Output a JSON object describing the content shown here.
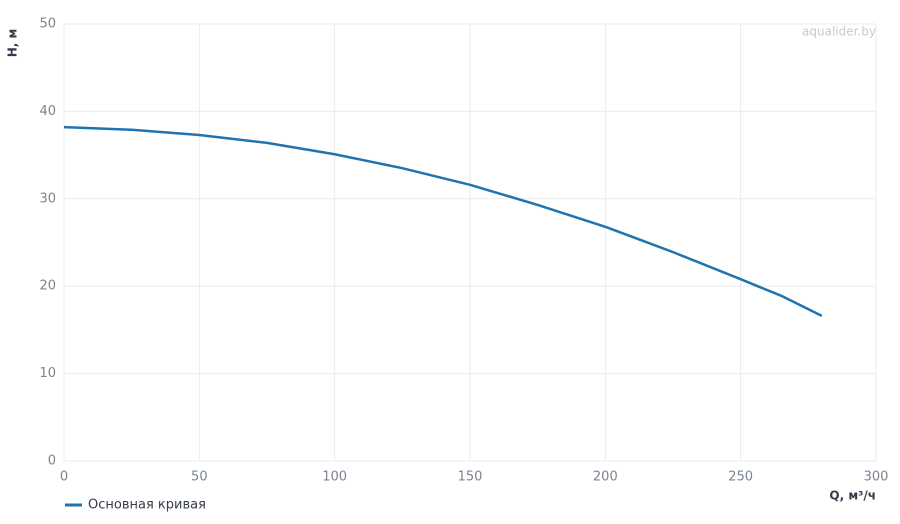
{
  "chart_data": {
    "type": "line",
    "watermark": "aqualider.by",
    "x_label": "Q, м³/ч",
    "y_label": "H, м",
    "x": [
      0,
      25,
      50,
      75,
      100,
      125,
      150,
      175,
      200,
      225,
      250,
      265,
      280
    ],
    "series": [
      {
        "name": "Основная кривая",
        "color": "#2173b0",
        "values": [
          38.2,
          37.9,
          37.3,
          36.4,
          35.1,
          33.5,
          31.6,
          29.3,
          26.8,
          23.9,
          20.8,
          18.9,
          16.6
        ]
      }
    ],
    "xlim": [
      0,
      300
    ],
    "xticks": [
      0,
      50,
      100,
      150,
      200,
      250,
      300
    ],
    "ylim": [
      0,
      50
    ],
    "yticks": [
      0,
      10,
      20,
      30,
      40,
      50
    ],
    "grid": true
  }
}
